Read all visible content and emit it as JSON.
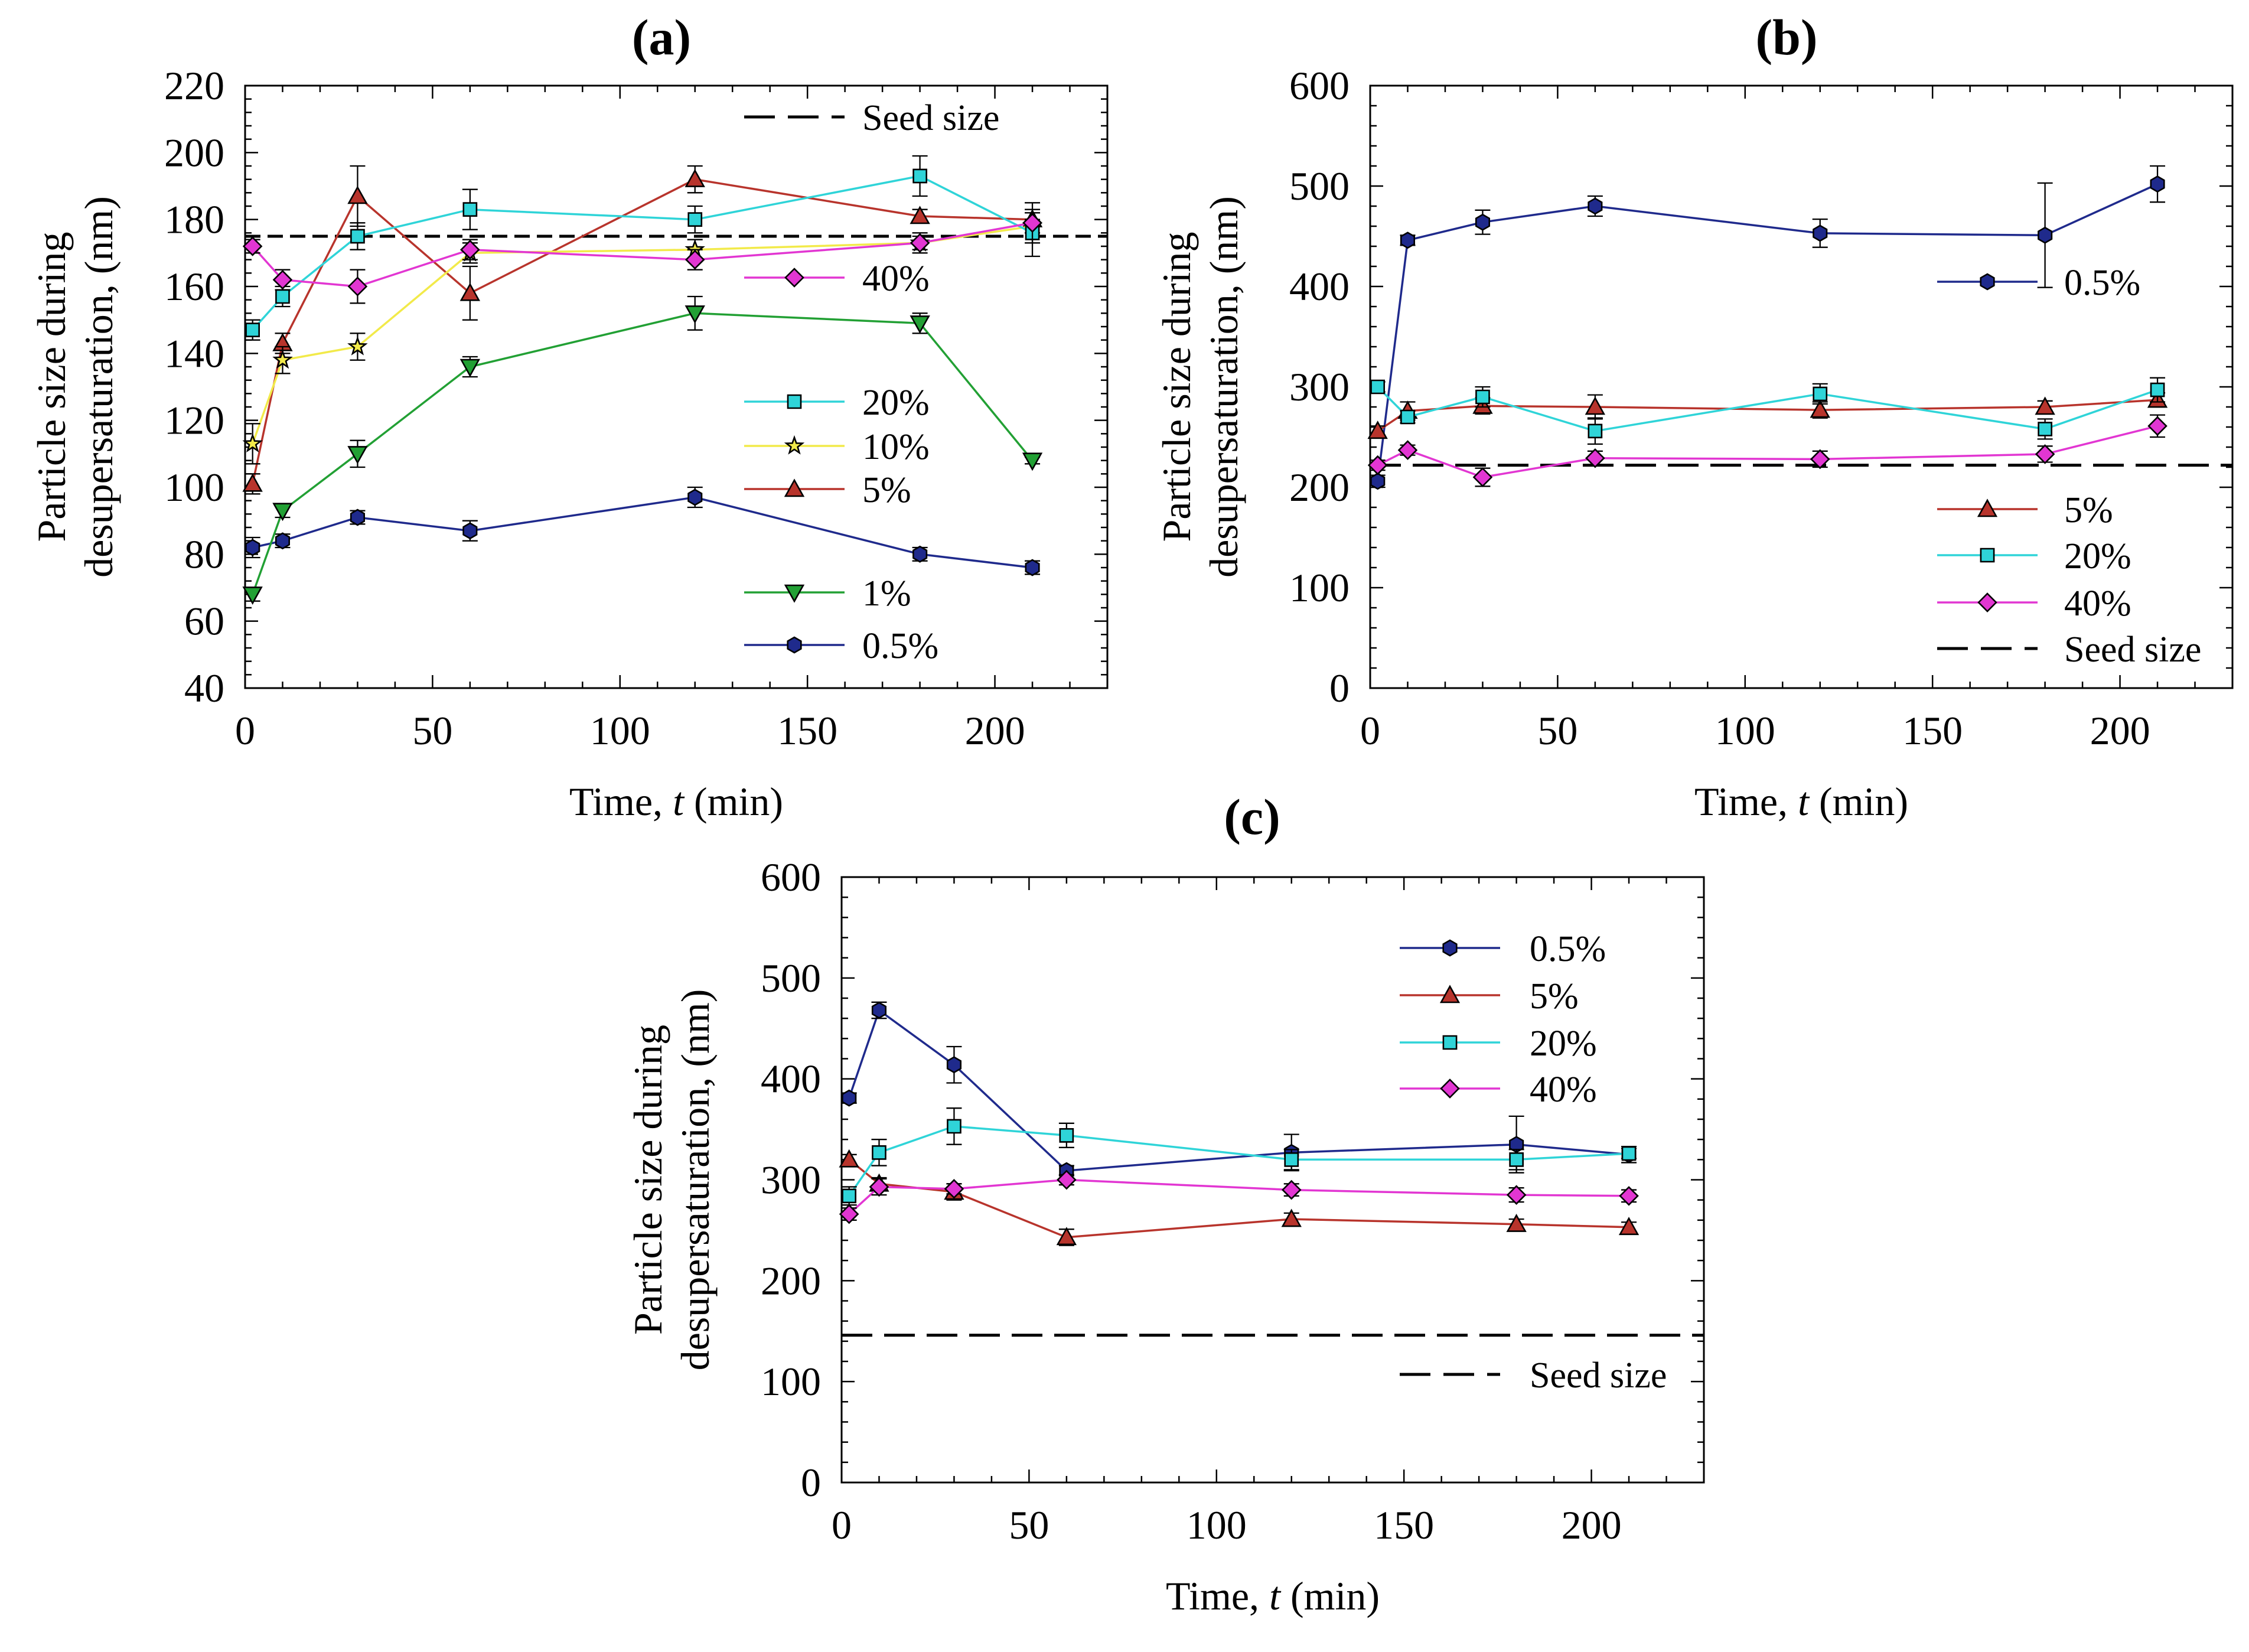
{
  "colors": {
    "0.5%": "#1f2a8c",
    "1%": "#22a034",
    "5%": "#b8342c",
    "10%": "#f2ea4a",
    "20%": "#2fd4d8",
    "40%": "#e236d2"
  },
  "chart_data": [
    {
      "type": "line",
      "panel": "(a)",
      "title": "(a)",
      "xlabel": "Time, t (min)",
      "ylabel_line1": "Particle size during",
      "ylabel_line2": "desupersaturation, (nm)",
      "xlim": [
        0,
        230
      ],
      "ylim": [
        40,
        220
      ],
      "xticks": [
        0,
        50,
        100,
        150,
        200
      ],
      "yticks": [
        40,
        60,
        80,
        100,
        120,
        140,
        160,
        180,
        200,
        220
      ],
      "seed_size": 175,
      "seed_label": "Seed size",
      "x": [
        2,
        10,
        30,
        60,
        120,
        180,
        210
      ],
      "series": [
        {
          "name": "0.5%",
          "marker": "hexagon",
          "values": [
            82,
            84,
            91,
            87,
            97,
            80,
            76
          ],
          "errors": [
            3,
            2,
            2,
            3,
            3,
            2,
            2
          ]
        },
        {
          "name": "1%",
          "marker": "triangle-down",
          "values": [
            68,
            93,
            110,
            136,
            152,
            149,
            108
          ],
          "errors": [
            2,
            2,
            4,
            3,
            5,
            3,
            1
          ]
        },
        {
          "name": "5%",
          "marker": "triangle-up",
          "values": [
            101,
            143,
            187,
            158,
            192,
            181,
            180
          ],
          "errors": [
            3,
            3,
            9,
            8,
            4,
            2,
            2
          ]
        },
        {
          "name": "10%",
          "marker": "star",
          "values": [
            113,
            138,
            142,
            170,
            171,
            173,
            178
          ],
          "errors": [
            6,
            4,
            4,
            3,
            3,
            2,
            2
          ]
        },
        {
          "name": "20%",
          "marker": "square",
          "values": [
            147,
            157,
            175,
            183,
            180,
            193,
            176
          ],
          "errors": [
            3,
            3,
            4,
            6,
            4,
            6,
            7
          ]
        },
        {
          "name": "40%",
          "marker": "diamond",
          "values": [
            172,
            162,
            160,
            171,
            168,
            173,
            179
          ],
          "errors": [
            2,
            3,
            5,
            3,
            3,
            3,
            6
          ]
        }
      ],
      "legend": [
        {
          "type": "dash",
          "label": "Seed size"
        },
        {
          "series": "40%",
          "label": "40%"
        },
        {
          "series": "20%",
          "label": "20%"
        },
        {
          "series": "10%",
          "label": "10%"
        },
        {
          "series": "5%",
          "label": "5%"
        },
        {
          "series": "1%",
          "label": "1%"
        },
        {
          "series": "0.5%",
          "label": "0.5%"
        }
      ]
    },
    {
      "type": "line",
      "panel": "(b)",
      "title": "(b)",
      "xlabel": "Time, t (min)",
      "ylabel_line1": "Particle size during",
      "ylabel_line2": "desupersaturation, (nm)",
      "xlim": [
        0,
        230
      ],
      "ylim": [
        0,
        600
      ],
      "xticks": [
        0,
        50,
        100,
        150,
        200
      ],
      "yticks": [
        0,
        100,
        200,
        300,
        400,
        500,
        600
      ],
      "seed_size": 222,
      "seed_label": "Seed size",
      "x": [
        2,
        10,
        30,
        60,
        120,
        180,
        210
      ],
      "series": [
        {
          "name": "0.5%",
          "marker": "hexagon",
          "values": [
            206,
            446,
            464,
            480,
            453,
            451,
            502
          ],
          "errors": [
            6,
            5,
            12,
            10,
            14,
            52,
            18
          ]
        },
        {
          "name": "5%",
          "marker": "triangle-up",
          "values": [
            256,
            276,
            281,
            280,
            277,
            280,
            287
          ],
          "errors": [
            5,
            9,
            8,
            12,
            8,
            6,
            7
          ]
        },
        {
          "name": "20%",
          "marker": "square",
          "values": [
            300,
            270,
            290,
            256,
            293,
            258,
            297
          ],
          "errors": [
            5,
            6,
            10,
            13,
            10,
            10,
            12
          ]
        },
        {
          "name": "40%",
          "marker": "diamond",
          "values": [
            222,
            237,
            210,
            229,
            228,
            233,
            261
          ],
          "errors": [
            5,
            5,
            9,
            7,
            8,
            8,
            11
          ]
        }
      ],
      "legend": [
        {
          "series": "0.5%",
          "label": "0.5%"
        },
        {
          "series": "5%",
          "label": "5%"
        },
        {
          "series": "20%",
          "label": "20%"
        },
        {
          "series": "40%",
          "label": "40%"
        },
        {
          "type": "dash",
          "label": "Seed size"
        }
      ]
    },
    {
      "type": "line",
      "panel": "(c)",
      "title": "(c)",
      "xlabel": "Time, t (min)",
      "ylabel_line1": "Particle size during",
      "ylabel_line2": "desupersaturation, (nm)",
      "xlim": [
        0,
        230
      ],
      "ylim": [
        0,
        600
      ],
      "xticks": [
        0,
        50,
        100,
        150,
        200
      ],
      "yticks": [
        0,
        100,
        200,
        300,
        400,
        500,
        600
      ],
      "seed_size": 146,
      "seed_label": "Seed size",
      "x": [
        2,
        10,
        30,
        60,
        120,
        180,
        210
      ],
      "series": [
        {
          "name": "0.5%",
          "marker": "hexagon",
          "values": [
            381,
            468,
            414,
            309,
            327,
            335,
            325
          ],
          "errors": [
            5,
            8,
            18,
            5,
            18,
            28,
            8
          ]
        },
        {
          "name": "5%",
          "marker": "triangle-up",
          "values": [
            320,
            296,
            288,
            243,
            261,
            256,
            253
          ],
          "errors": [
            5,
            6,
            8,
            8,
            6,
            5,
            5
          ]
        },
        {
          "name": "20%",
          "marker": "square",
          "values": [
            284,
            327,
            353,
            344,
            320,
            320,
            326
          ],
          "errors": [
            9,
            13,
            18,
            12,
            10,
            10,
            5
          ]
        },
        {
          "name": "40%",
          "marker": "diamond",
          "values": [
            266,
            293,
            291,
            300,
            290,
            285,
            284
          ],
          "errors": [
            6,
            8,
            5,
            5,
            6,
            7,
            6
          ]
        }
      ],
      "legend": [
        {
          "series": "0.5%",
          "label": "0.5%"
        },
        {
          "series": "5%",
          "label": "5%"
        },
        {
          "series": "20%",
          "label": "20%"
        },
        {
          "series": "40%",
          "label": "40%"
        },
        {
          "type": "dash",
          "label": "Seed size"
        }
      ]
    }
  ]
}
